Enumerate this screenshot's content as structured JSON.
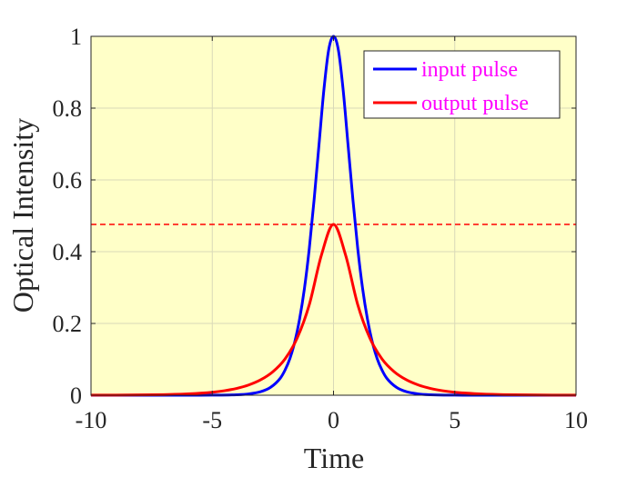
{
  "chart_data": {
    "type": "line",
    "xlabel": "Time",
    "ylabel": "Optical Intensity",
    "xlim": [
      -10,
      10
    ],
    "ylim": [
      0,
      1
    ],
    "x_ticks": [
      "-10",
      "-5",
      "0",
      "5",
      "10"
    ],
    "y_ticks": [
      "0",
      "0.2",
      "0.4",
      "0.6",
      "0.8",
      "1"
    ],
    "grid": true,
    "legend_position": "top-right",
    "background_color": "#ffffc8",
    "legend_text_color": "#ff00ff",
    "series": [
      {
        "name": "input pulse",
        "color": "#0000ff",
        "x": [
          -10,
          -6,
          -5,
          -4,
          -3.5,
          -3,
          -2.6,
          -2.2,
          -2,
          -1.8,
          -1.6,
          -1.4,
          -1.2,
          -1.0,
          -0.8,
          -0.6,
          -0.4,
          -0.2,
          0,
          0.2,
          0.4,
          0.6,
          0.8,
          1.0,
          1.2,
          1.4,
          1.6,
          1.8,
          2,
          2.2,
          2.6,
          3,
          3.5,
          4,
          5,
          6,
          10
        ],
        "y": [
          0,
          0,
          0.0002,
          0.0013,
          0.0036,
          0.0099,
          0.0218,
          0.047,
          0.07,
          0.102,
          0.148,
          0.212,
          0.297,
          0.408,
          0.545,
          0.697,
          0.849,
          0.962,
          1,
          0.962,
          0.849,
          0.697,
          0.545,
          0.408,
          0.297,
          0.212,
          0.148,
          0.102,
          0.07,
          0.047,
          0.0218,
          0.0099,
          0.0036,
          0.0013,
          0.0002,
          0,
          0
        ]
      },
      {
        "name": "output pulse",
        "color": "#ff0000",
        "x": [
          -10,
          -8,
          -7,
          -6,
          -5,
          -4.5,
          -4,
          -3.5,
          -3,
          -2.5,
          -2,
          -1.5,
          -1,
          -0.5,
          0,
          0.5,
          1,
          1.5,
          2,
          2.5,
          3,
          3.5,
          4,
          4.5,
          5,
          6,
          7,
          8,
          10
        ],
        "y": [
          0.0002,
          0.0008,
          0.0017,
          0.0038,
          0.0083,
          0.0125,
          0.0189,
          0.0285,
          0.0431,
          0.0656,
          0.101,
          0.159,
          0.252,
          0.39,
          0.476,
          0.39,
          0.252,
          0.159,
          0.101,
          0.0656,
          0.0431,
          0.0285,
          0.0189,
          0.0125,
          0.0083,
          0.0038,
          0.0017,
          0.0008,
          0.0002
        ]
      }
    ],
    "reference_lines": [
      {
        "orientation": "horizontal",
        "y": 0.476,
        "color": "#ff0000",
        "style": "dashed"
      }
    ]
  }
}
